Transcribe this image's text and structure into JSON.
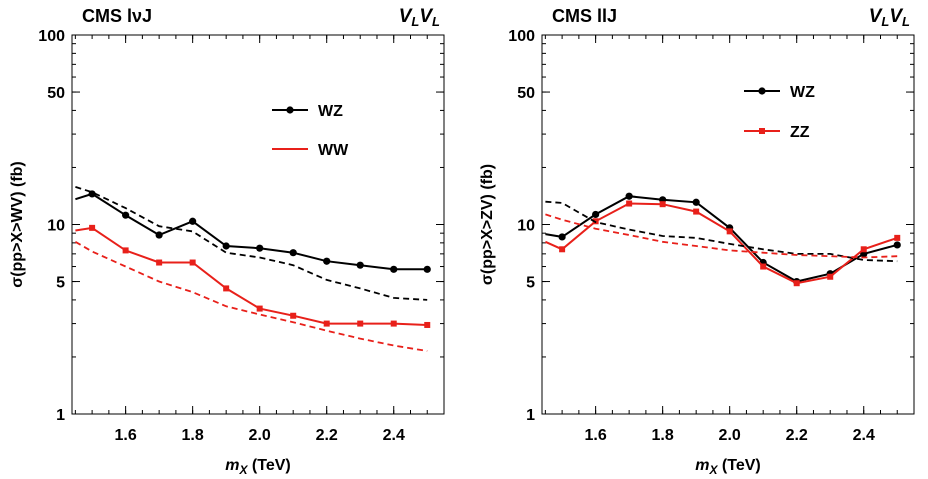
{
  "chart_data": [
    {
      "type": "line",
      "title": "CMS lνJ",
      "corner_label": "VLVL",
      "xlabel": "mX (TeV)",
      "ylabel": "σ(pp>X>WV) (fb)",
      "xscale": "linear",
      "yscale": "log",
      "xlim": [
        1.44,
        2.55
      ],
      "ylim": [
        1,
        100
      ],
      "xticks": [
        "1.6",
        "1.8",
        "2.0",
        "2.2",
        "2.4"
      ],
      "xtick_values": [
        1.6,
        1.8,
        2.0,
        2.2,
        2.4
      ],
      "yticks": [
        "1",
        "5",
        "10",
        "50",
        "100"
      ],
      "ytick_values": [
        1,
        5,
        10,
        50,
        100
      ],
      "legend_position": "upper-right",
      "series": [
        {
          "name": "WZ",
          "color": "#000000",
          "style": "solid",
          "marker": "circle",
          "x": [
            1.45,
            1.5,
            1.6,
            1.7,
            1.8,
            1.9,
            2.0,
            2.1,
            2.2,
            2.3,
            2.4,
            2.5
          ],
          "y": [
            13.6,
            14.5,
            11.2,
            8.8,
            10.4,
            7.7,
            7.5,
            7.1,
            6.4,
            6.1,
            5.8,
            5.8
          ]
        },
        {
          "name": "WW",
          "color": "#e8201a",
          "style": "solid",
          "marker": "square",
          "x": [
            1.45,
            1.5,
            1.6,
            1.7,
            1.8,
            1.9,
            2.0,
            2.1,
            2.2,
            2.3,
            2.4,
            2.5
          ],
          "y": [
            9.3,
            9.6,
            7.3,
            6.3,
            6.3,
            4.6,
            3.6,
            3.3,
            3.0,
            3.0,
            3.0,
            2.95
          ]
        },
        {
          "color": "#000000",
          "style": "dashed",
          "x": [
            1.45,
            1.5,
            1.6,
            1.7,
            1.8,
            1.9,
            2.0,
            2.1,
            2.2,
            2.3,
            2.4,
            2.5
          ],
          "y": [
            15.8,
            14.8,
            12.2,
            9.8,
            9.2,
            7.1,
            6.7,
            6.1,
            5.1,
            4.6,
            4.1,
            4.0
          ]
        },
        {
          "color": "#e8201a",
          "style": "dashed",
          "x": [
            1.45,
            1.5,
            1.6,
            1.7,
            1.8,
            1.9,
            2.0,
            2.1,
            2.2,
            2.3,
            2.4,
            2.5
          ],
          "y": [
            8.1,
            7.2,
            6.0,
            5.0,
            4.4,
            3.7,
            3.35,
            3.05,
            2.75,
            2.5,
            2.3,
            2.15
          ]
        }
      ]
    },
    {
      "type": "line",
      "title": "CMS llJ",
      "corner_label": "VLVL",
      "xlabel": "mX (TeV)",
      "ylabel": "σ(pp>X>ZV) (fb)",
      "xscale": "linear",
      "yscale": "log",
      "xlim": [
        1.44,
        2.55
      ],
      "ylim": [
        1,
        100
      ],
      "xticks": [
        "1.6",
        "1.8",
        "2.0",
        "2.2",
        "2.4"
      ],
      "xtick_values": [
        1.6,
        1.8,
        2.0,
        2.2,
        2.4
      ],
      "yticks": [
        "1",
        "5",
        "10",
        "50",
        "100"
      ],
      "ytick_values": [
        1,
        5,
        10,
        50,
        100
      ],
      "legend_position": "upper-right",
      "series": [
        {
          "name": "WZ",
          "color": "#000000",
          "style": "solid",
          "marker": "circle",
          "x": [
            1.45,
            1.5,
            1.6,
            1.7,
            1.8,
            1.9,
            2.0,
            2.1,
            2.2,
            2.3,
            2.4,
            2.5
          ],
          "y": [
            8.9,
            8.6,
            11.3,
            14.1,
            13.5,
            13.1,
            9.6,
            6.3,
            5.0,
            5.5,
            7.0,
            7.8
          ]
        },
        {
          "name": "ZZ",
          "color": "#e8201a",
          "style": "solid",
          "marker": "square",
          "x": [
            1.45,
            1.5,
            1.6,
            1.7,
            1.8,
            1.9,
            2.0,
            2.1,
            2.2,
            2.3,
            2.4,
            2.5
          ],
          "y": [
            8.1,
            7.4,
            10.4,
            12.9,
            12.8,
            11.7,
            9.2,
            6.0,
            4.9,
            5.3,
            7.4,
            8.5
          ]
        },
        {
          "color": "#000000",
          "style": "dashed",
          "x": [
            1.45,
            1.5,
            1.6,
            1.7,
            1.8,
            1.9,
            2.0,
            2.1,
            2.2,
            2.3,
            2.4,
            2.5
          ],
          "y": [
            13.2,
            13.0,
            10.3,
            9.4,
            8.7,
            8.5,
            7.9,
            7.4,
            7.0,
            7.0,
            6.5,
            6.4
          ]
        },
        {
          "color": "#e8201a",
          "style": "dashed",
          "x": [
            1.45,
            1.5,
            1.6,
            1.7,
            1.8,
            1.9,
            2.0,
            2.1,
            2.2,
            2.3,
            2.4,
            2.5
          ],
          "y": [
            11.3,
            10.6,
            9.5,
            8.8,
            8.1,
            7.7,
            7.3,
            7.1,
            6.9,
            6.8,
            6.7,
            6.8
          ]
        }
      ]
    }
  ]
}
